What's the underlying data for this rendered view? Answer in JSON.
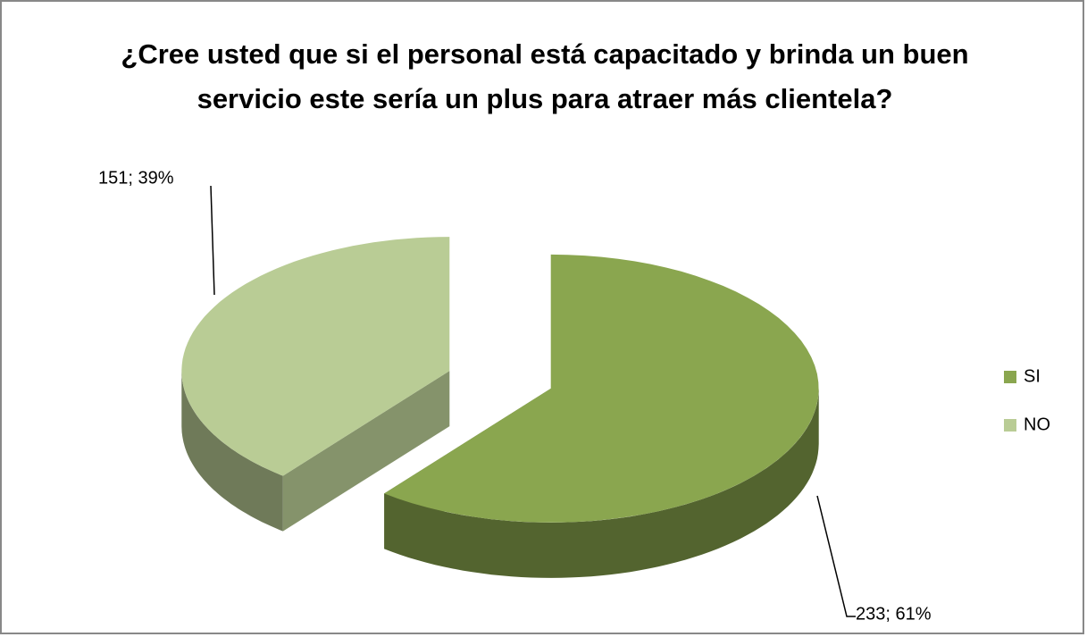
{
  "chart_data": {
    "type": "pie3d",
    "title": "¿Cree usted que si el personal está capacitado y brinda un buen servicio este sería un plus para atraer más clientela?",
    "categories": [
      "SI",
      "NO"
    ],
    "values": [
      233,
      151
    ],
    "value_labels": [
      "233; 61%",
      "151; 39%"
    ],
    "colors": [
      "#8aa64f",
      "#b9cc95"
    ],
    "legend": "right"
  }
}
